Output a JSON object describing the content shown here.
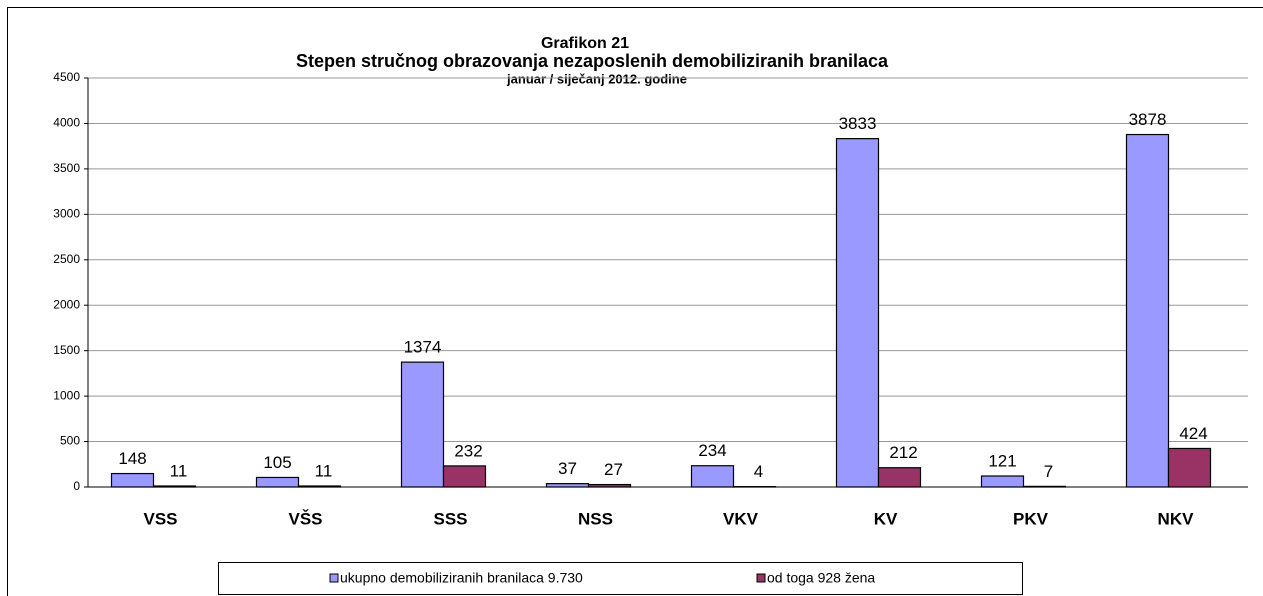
{
  "chart_data": {
    "type": "bar",
    "title": "Grafikon 21",
    "subtitle": "Stepen stručnog obrazovanja nezaposlenih demobiliziranih branilaca",
    "period": "januar /  siječanj  2012. godine",
    "categories": [
      "VSS",
      "VŠS",
      "SSS",
      "NSS",
      "VKV",
      "KV",
      "PKV",
      "NKV"
    ],
    "series": [
      {
        "name": "ukupno demobiliziranih branilaca 9.730",
        "color": "#9999ff",
        "values": [
          148,
          105,
          1374,
          37,
          234,
          3833,
          121,
          3878
        ]
      },
      {
        "name": "od toga 928 žena",
        "color": "#993366",
        "values": [
          11,
          11,
          232,
          27,
          4,
          212,
          7,
          424
        ]
      }
    ],
    "ylim": [
      0,
      4500
    ],
    "yticks": [
      0,
      500,
      1000,
      1500,
      2000,
      2500,
      3000,
      3500,
      4000,
      4500
    ],
    "grid": true,
    "legend": "bottom"
  }
}
